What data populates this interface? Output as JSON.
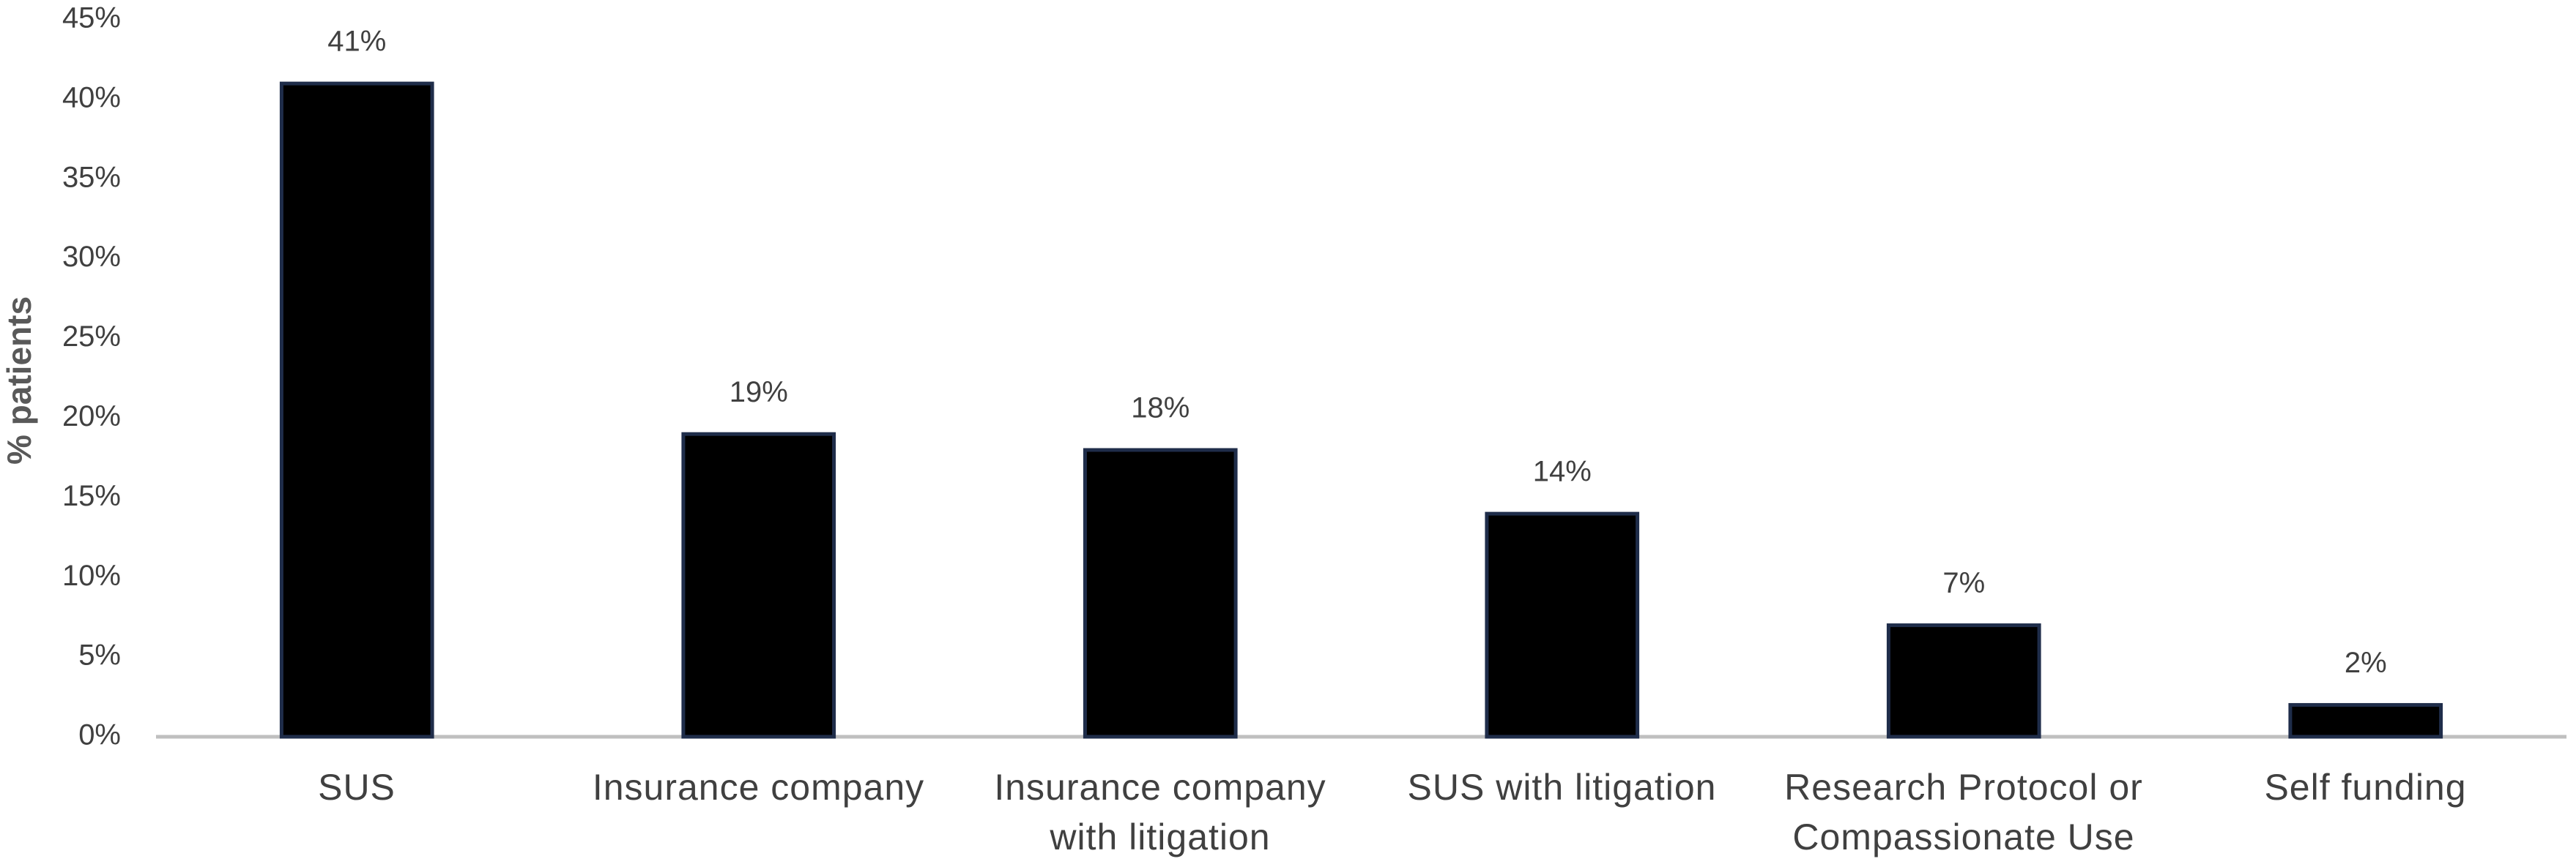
{
  "chart_data": {
    "type": "bar",
    "y_label": "% patients",
    "categories": [
      "SUS",
      "Insurance company",
      "Insurance company with litigation",
      "SUS with litigation",
      "Research Protocol or Compassionate Use",
      "Self funding"
    ],
    "values": [
      41,
      19,
      18,
      14,
      7,
      2
    ],
    "value_labels": [
      "41%",
      "19%",
      "18%",
      "14%",
      "7%",
      "2%"
    ],
    "color": "#000000",
    "ylim": [
      0,
      45
    ],
    "yticks": [
      {
        "value": 0,
        "label": "0%"
      },
      {
        "value": 5,
        "label": "5%"
      },
      {
        "value": 10,
        "label": "10%"
      },
      {
        "value": 15,
        "label": "15%"
      },
      {
        "value": 20,
        "label": "20%"
      },
      {
        "value": 25,
        "label": "25%"
      },
      {
        "value": 30,
        "label": "30%"
      },
      {
        "value": 35,
        "label": "35%"
      },
      {
        "value": 40,
        "label": "40%"
      },
      {
        "value": 45,
        "label": "45%"
      }
    ],
    "grid": false
  }
}
